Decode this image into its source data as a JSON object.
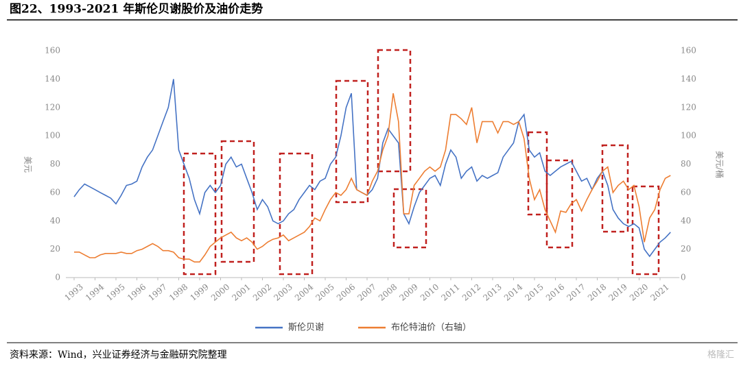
{
  "chart_data": {
    "type": "line",
    "title": "图22、1993-2021 年斯伦贝谢股价及油价走势",
    "source": "资料来源：Wind，兴业证券经济与金融研究院整理",
    "watermark": "格隆汇",
    "ylabel": "美元",
    "y2label": "美元/桶",
    "x": [
      1993,
      1993.25,
      1993.5,
      1993.75,
      1994,
      1994.25,
      1994.5,
      1994.75,
      1995,
      1995.25,
      1995.5,
      1995.75,
      1996,
      1996.25,
      1996.5,
      1996.75,
      1997,
      1997.25,
      1997.5,
      1997.75,
      1998,
      1998.25,
      1998.5,
      1998.75,
      1999,
      1999.25,
      1999.5,
      1999.75,
      2000,
      2000.25,
      2000.5,
      2000.75,
      2001,
      2001.25,
      2001.5,
      2001.75,
      2002,
      2002.25,
      2002.5,
      2002.75,
      2003,
      2003.25,
      2003.5,
      2003.75,
      2004,
      2004.25,
      2004.5,
      2004.75,
      2005,
      2005.25,
      2005.5,
      2005.75,
      2006,
      2006.25,
      2006.5,
      2006.75,
      2007,
      2007.25,
      2007.5,
      2007.75,
      2008,
      2008.25,
      2008.5,
      2008.75,
      2009,
      2009.25,
      2009.5,
      2009.75,
      2010,
      2010.25,
      2010.5,
      2010.75,
      2011,
      2011.25,
      2011.5,
      2011.75,
      2012,
      2012.25,
      2012.5,
      2012.75,
      2013,
      2013.25,
      2013.5,
      2013.75,
      2014,
      2014.25,
      2014.5,
      2014.75,
      2015,
      2015.25,
      2015.5,
      2015.75,
      2016,
      2016.25,
      2016.5,
      2016.75,
      2017,
      2017.25,
      2017.5,
      2017.75,
      2018,
      2018.25,
      2018.5,
      2018.75,
      2019,
      2019.25,
      2019.5,
      2019.75,
      2020,
      2020.25,
      2020.5,
      2020.75,
      2021,
      2021.25,
      2021.5
    ],
    "xlim": [
      1993,
      2021.6
    ],
    "xticks": [
      1993,
      1994,
      1995,
      1996,
      1997,
      1998,
      1999,
      2000,
      2001,
      2002,
      2003,
      2004,
      2005,
      2006,
      2007,
      2008,
      2009,
      2010,
      2011,
      2012,
      2013,
      2014,
      2015,
      2016,
      2017,
      2018,
      2019,
      2020,
      2021
    ],
    "ylim": [
      0,
      160
    ],
    "yticks": [
      0,
      20,
      40,
      60,
      80,
      100,
      120,
      140,
      160
    ],
    "y2lim": [
      0,
      160
    ],
    "y2ticks": [
      0,
      20,
      40,
      60,
      80,
      100,
      120,
      140,
      160
    ],
    "series": [
      {
        "name": "斯伦贝谢",
        "color": "#4472c4",
        "values": [
          57,
          62,
          66,
          64,
          62,
          60,
          58,
          56,
          52,
          58,
          65,
          66,
          68,
          78,
          85,
          90,
          100,
          110,
          120,
          140,
          90,
          80,
          70,
          55,
          45,
          60,
          65,
          60,
          65,
          80,
          85,
          78,
          80,
          70,
          60,
          48,
          55,
          50,
          40,
          38,
          40,
          45,
          48,
          55,
          60,
          65,
          62,
          68,
          70,
          80,
          85,
          100,
          120,
          130,
          62,
          60,
          58,
          62,
          70,
          95,
          105,
          100,
          95,
          45,
          38,
          50,
          60,
          65,
          70,
          72,
          65,
          80,
          90,
          85,
          70,
          75,
          78,
          68,
          72,
          70,
          72,
          74,
          85,
          90,
          95,
          110,
          115,
          90,
          85,
          88,
          75,
          72,
          75,
          78,
          80,
          82,
          75,
          68,
          70,
          62,
          70,
          75,
          65,
          48,
          42,
          38,
          36,
          38,
          35,
          20,
          15,
          20,
          25,
          28,
          32
        ]
      },
      {
        "name": "布伦特油价（右轴）",
        "color": "#ed7d31",
        "axis": "y2",
        "values": [
          18,
          18,
          16,
          14,
          14,
          16,
          17,
          17,
          17,
          18,
          17,
          17,
          19,
          20,
          22,
          24,
          22,
          19,
          19,
          18,
          14,
          13,
          13,
          11,
          11,
          16,
          22,
          25,
          28,
          30,
          32,
          28,
          26,
          28,
          25,
          20,
          22,
          25,
          27,
          28,
          30,
          26,
          28,
          30,
          32,
          36,
          42,
          40,
          48,
          55,
          60,
          58,
          62,
          70,
          62,
          60,
          58,
          68,
          75,
          90,
          100,
          130,
          110,
          45,
          45,
          65,
          70,
          75,
          78,
          75,
          78,
          90,
          115,
          115,
          112,
          108,
          120,
          95,
          110,
          110,
          110,
          102,
          110,
          110,
          108,
          110,
          98,
          70,
          55,
          62,
          48,
          40,
          32,
          47,
          46,
          52,
          55,
          47,
          55,
          62,
          68,
          75,
          78,
          60,
          65,
          68,
          62,
          65,
          50,
          25,
          42,
          48,
          62,
          70,
          72
        ]
      }
    ]
  }
}
